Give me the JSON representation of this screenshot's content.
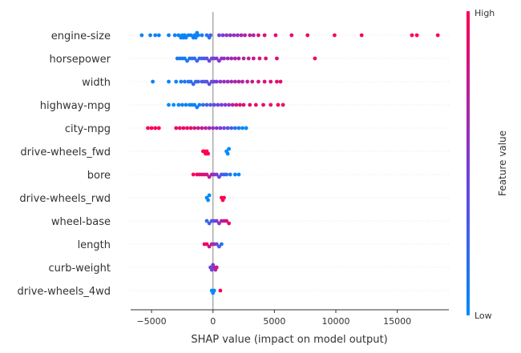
{
  "chart_data": {
    "type": "scatter",
    "subtype": "shap-beeswarm",
    "title": "",
    "xlabel": "SHAP value (impact on model output)",
    "ylabel": "",
    "xlim": [
      -6700,
      19200
    ],
    "xticks": [
      -5000,
      0,
      5000,
      10000,
      15000
    ],
    "xtick_labels": [
      "−5000",
      "0",
      "5000",
      "10000",
      "15000"
    ],
    "zero_line": true,
    "grid": false,
    "colorbar": {
      "title": "Feature value",
      "high_label": "High",
      "low_label": "Low",
      "low_color": "#008bfb",
      "mid_color": "#7c3bd6",
      "high_color": "#ff0051"
    },
    "features": [
      {
        "name": "engine-size",
        "points": [
          [
            -5800,
            0.05
          ],
          [
            -5100,
            0.05
          ],
          [
            -4700,
            0.05
          ],
          [
            -4400,
            0.05
          ],
          [
            -3600,
            0.05
          ],
          [
            -3100,
            0.05
          ],
          [
            -2800,
            0.05
          ],
          [
            -2600,
            0.05
          ],
          [
            -2500,
            0.05
          ],
          [
            -2400,
            0.05
          ],
          [
            -2300,
            0.05
          ],
          [
            -2200,
            0.05
          ],
          [
            -2000,
            0.05
          ],
          [
            -1800,
            0.05
          ],
          [
            -1600,
            0.05
          ],
          [
            -1500,
            0.05
          ],
          [
            -1400,
            0.05
          ],
          [
            -1300,
            0.05
          ],
          [
            -1200,
            0.05
          ],
          [
            -900,
            0.08
          ],
          [
            -500,
            0.15
          ],
          [
            -300,
            0.2
          ],
          [
            -200,
            0.25
          ],
          [
            500,
            0.45
          ],
          [
            800,
            0.5
          ],
          [
            1100,
            0.55
          ],
          [
            1400,
            0.6
          ],
          [
            1700,
            0.55
          ],
          [
            2000,
            0.6
          ],
          [
            2300,
            0.65
          ],
          [
            2600,
            0.7
          ],
          [
            3000,
            0.75
          ],
          [
            3300,
            0.7
          ],
          [
            3700,
            0.8
          ],
          [
            4200,
            0.85
          ],
          [
            5100,
            0.9
          ],
          [
            6400,
            0.9
          ],
          [
            7700,
            0.92
          ],
          [
            9900,
            0.95
          ],
          [
            12100,
            0.96
          ],
          [
            16200,
            0.99
          ],
          [
            16600,
            1.0
          ],
          [
            18300,
            1.0
          ]
        ]
      },
      {
        "name": "horsepower",
        "points": [
          [
            -2900,
            0.1
          ],
          [
            -2700,
            0.1
          ],
          [
            -2500,
            0.1
          ],
          [
            -2300,
            0.1
          ],
          [
            -2100,
            0.12
          ],
          [
            -1900,
            0.15
          ],
          [
            -1700,
            0.15
          ],
          [
            -1500,
            0.2
          ],
          [
            -1300,
            0.2
          ],
          [
            -1100,
            0.25
          ],
          [
            -900,
            0.25
          ],
          [
            -700,
            0.3
          ],
          [
            -500,
            0.35
          ],
          [
            -300,
            0.4
          ],
          [
            -100,
            0.45
          ],
          [
            100,
            0.5
          ],
          [
            300,
            0.5
          ],
          [
            500,
            0.55
          ],
          [
            700,
            0.55
          ],
          [
            900,
            0.6
          ],
          [
            1200,
            0.6
          ],
          [
            1500,
            0.65
          ],
          [
            1800,
            0.65
          ],
          [
            2100,
            0.7
          ],
          [
            2500,
            0.7
          ],
          [
            2900,
            0.75
          ],
          [
            3300,
            0.8
          ],
          [
            3800,
            0.8
          ],
          [
            4300,
            0.85
          ],
          [
            5200,
            0.85
          ],
          [
            8300,
            0.95
          ]
        ]
      },
      {
        "name": "width",
        "points": [
          [
            -4900,
            0.05
          ],
          [
            -3600,
            0.05
          ],
          [
            -3000,
            0.05
          ],
          [
            -2600,
            0.1
          ],
          [
            -2300,
            0.1
          ],
          [
            -2000,
            0.15
          ],
          [
            -1800,
            0.15
          ],
          [
            -1600,
            0.2
          ],
          [
            -1400,
            0.2
          ],
          [
            -1200,
            0.25
          ],
          [
            -900,
            0.3
          ],
          [
            -700,
            0.3
          ],
          [
            -500,
            0.35
          ],
          [
            -300,
            0.4
          ],
          [
            -100,
            0.4
          ],
          [
            100,
            0.45
          ],
          [
            300,
            0.5
          ],
          [
            600,
            0.55
          ],
          [
            900,
            0.6
          ],
          [
            1200,
            0.6
          ],
          [
            1500,
            0.65
          ],
          [
            1800,
            0.65
          ],
          [
            2100,
            0.7
          ],
          [
            2400,
            0.7
          ],
          [
            2800,
            0.75
          ],
          [
            3200,
            0.8
          ],
          [
            3700,
            0.8
          ],
          [
            4200,
            0.85
          ],
          [
            4700,
            0.85
          ],
          [
            5200,
            0.9
          ],
          [
            5500,
            0.9
          ]
        ]
      },
      {
        "name": "highway-mpg",
        "points": [
          [
            -3600,
            0.0
          ],
          [
            -3200,
            0.0
          ],
          [
            -2800,
            0.0
          ],
          [
            -2500,
            0.05
          ],
          [
            -2200,
            0.05
          ],
          [
            -1900,
            0.05
          ],
          [
            -1700,
            0.05
          ],
          [
            -1500,
            0.05
          ],
          [
            -1300,
            0.08
          ],
          [
            -1100,
            0.1
          ],
          [
            -800,
            0.2
          ],
          [
            -500,
            0.25
          ],
          [
            -200,
            0.3
          ],
          [
            100,
            0.4
          ],
          [
            400,
            0.45
          ],
          [
            700,
            0.5
          ],
          [
            1000,
            0.5
          ],
          [
            1300,
            0.55
          ],
          [
            1600,
            0.75
          ],
          [
            1900,
            0.8
          ],
          [
            2200,
            0.85
          ],
          [
            2500,
            0.85
          ],
          [
            3000,
            0.9
          ],
          [
            3500,
            0.9
          ],
          [
            4100,
            0.92
          ],
          [
            4700,
            0.95
          ],
          [
            5300,
            0.95
          ],
          [
            5700,
            0.97
          ]
        ]
      },
      {
        "name": "city-mpg",
        "points": [
          [
            -5300,
            1.0
          ],
          [
            -5000,
            1.0
          ],
          [
            -4700,
            1.0
          ],
          [
            -4400,
            1.0
          ],
          [
            -3000,
            0.95
          ],
          [
            -2700,
            0.95
          ],
          [
            -2400,
            0.95
          ],
          [
            -2100,
            0.9
          ],
          [
            -1800,
            0.9
          ],
          [
            -1500,
            0.85
          ],
          [
            -1200,
            0.8
          ],
          [
            -900,
            0.75
          ],
          [
            -600,
            0.7
          ],
          [
            -300,
            0.65
          ],
          [
            0,
            0.6
          ],
          [
            300,
            0.55
          ],
          [
            600,
            0.5
          ],
          [
            900,
            0.45
          ],
          [
            1200,
            0.35
          ],
          [
            1500,
            0.25
          ],
          [
            1800,
            0.15
          ],
          [
            2100,
            0.1
          ],
          [
            2400,
            0.05
          ],
          [
            2700,
            0.0
          ]
        ]
      },
      {
        "name": "drive-wheels_fwd",
        "points": [
          [
            -800,
            1.0
          ],
          [
            -700,
            1.0
          ],
          [
            -600,
            1.0
          ],
          [
            -500,
            1.0
          ],
          [
            -400,
            1.0
          ],
          [
            1100,
            0.0
          ],
          [
            1200,
            0.0
          ],
          [
            1300,
            0.0
          ]
        ]
      },
      {
        "name": "bore",
        "points": [
          [
            -1600,
            1.0
          ],
          [
            -1300,
            0.95
          ],
          [
            -1100,
            0.9
          ],
          [
            -900,
            0.85
          ],
          [
            -700,
            0.85
          ],
          [
            -500,
            0.8
          ],
          [
            -300,
            0.75
          ],
          [
            -100,
            0.7
          ],
          [
            100,
            0.6
          ],
          [
            300,
            0.5
          ],
          [
            500,
            0.4
          ],
          [
            700,
            0.3
          ],
          [
            900,
            0.25
          ],
          [
            1100,
            0.2
          ],
          [
            1400,
            0.1
          ],
          [
            1800,
            0.05
          ],
          [
            2100,
            0.0
          ]
        ]
      },
      {
        "name": "drive-wheels_rwd",
        "points": [
          [
            -500,
            0.0
          ],
          [
            -400,
            0.0
          ],
          [
            -300,
            0.0
          ],
          [
            700,
            1.0
          ],
          [
            800,
            1.0
          ],
          [
            900,
            1.0
          ]
        ]
      },
      {
        "name": "wheel-base",
        "points": [
          [
            -500,
            0.2
          ],
          [
            -300,
            0.25
          ],
          [
            -100,
            0.3
          ],
          [
            100,
            0.4
          ],
          [
            300,
            0.5
          ],
          [
            500,
            0.6
          ],
          [
            700,
            0.7
          ],
          [
            900,
            0.8
          ],
          [
            1100,
            0.85
          ],
          [
            1300,
            0.9
          ]
        ]
      },
      {
        "name": "length",
        "points": [
          [
            -700,
            0.95
          ],
          [
            -500,
            0.9
          ],
          [
            -300,
            0.85
          ],
          [
            -100,
            0.75
          ],
          [
            100,
            0.6
          ],
          [
            300,
            0.45
          ],
          [
            500,
            0.3
          ],
          [
            700,
            0.15
          ]
        ]
      },
      {
        "name": "curb-weight",
        "points": [
          [
            -200,
            0.4
          ],
          [
            -100,
            0.45
          ],
          [
            0,
            0.5
          ],
          [
            100,
            0.6
          ],
          [
            200,
            0.7
          ],
          [
            300,
            0.8
          ]
        ]
      },
      {
        "name": "drive-wheels_4wd",
        "points": [
          [
            -100,
            0.0
          ],
          [
            0,
            0.0
          ],
          [
            100,
            0.0
          ],
          [
            600,
            1.0
          ]
        ]
      }
    ]
  }
}
